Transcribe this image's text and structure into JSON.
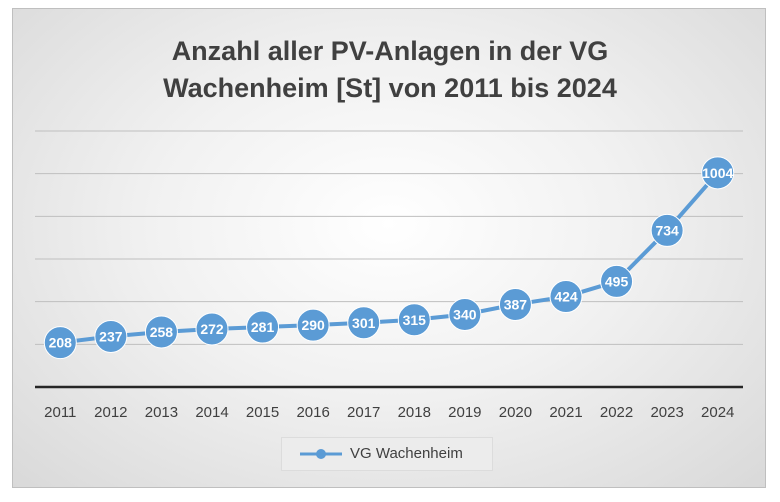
{
  "chart_data": {
    "type": "line",
    "title": [
      "Anzahl aller PV-Anlagen in der VG",
      "Wachenheim [St] von 2011 bis 2024"
    ],
    "categories": [
      "2011",
      "2012",
      "2013",
      "2014",
      "2015",
      "2016",
      "2017",
      "2018",
      "2019",
      "2020",
      "2021",
      "2022",
      "2023",
      "2024"
    ],
    "series": [
      {
        "name": "VG Wachenheim",
        "values": [
          208,
          237,
          258,
          272,
          281,
          290,
          301,
          315,
          340,
          387,
          424,
          495,
          734,
          1004
        ],
        "color": "#5b9bd5"
      }
    ],
    "xlabel": "",
    "ylabel": "",
    "ylim": [
      0,
      1200
    ],
    "grid": true,
    "axis_labels_y_visible": false,
    "data_labels": true,
    "legend_position": "bottom"
  }
}
